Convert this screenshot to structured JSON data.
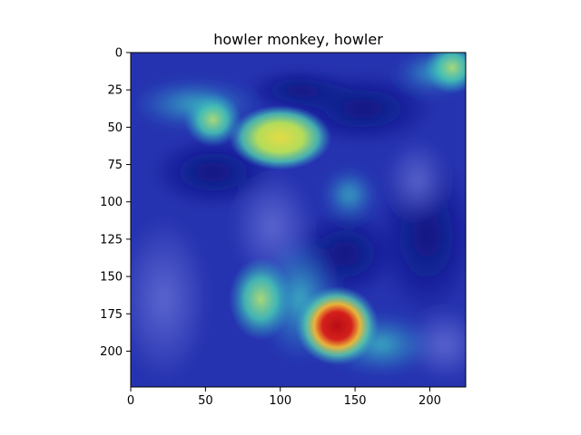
{
  "chart_data": {
    "type": "heatmap",
    "title": "howler monkey, howler",
    "xlabel": "",
    "ylabel": "",
    "xlim": [
      0,
      224
    ],
    "ylim": [
      224,
      0
    ],
    "x_ticks": [
      0,
      50,
      100,
      150,
      200
    ],
    "y_ticks": [
      0,
      25,
      50,
      75,
      100,
      125,
      150,
      175,
      200
    ],
    "grid": false,
    "colormap": "jet overlay on photo",
    "hotspots": [
      {
        "x": 138,
        "y": 183,
        "intensity": 1.0
      },
      {
        "x": 100,
        "y": 57,
        "intensity": 0.65
      },
      {
        "x": 87,
        "y": 165,
        "intensity": 0.55
      },
      {
        "x": 55,
        "y": 45,
        "intensity": 0.4
      },
      {
        "x": 215,
        "y": 10,
        "intensity": 0.35
      }
    ],
    "colors": {
      "cold": "#1a1f9e",
      "mid": "#3fc6b8",
      "warm": "#e7e34a",
      "hot": "#c8141a"
    }
  }
}
